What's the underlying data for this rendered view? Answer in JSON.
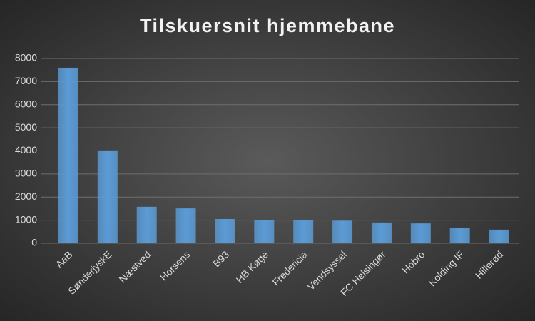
{
  "chart_data": {
    "type": "bar",
    "title": "Tilskuersnit hjemmebane",
    "categories": [
      "AaB",
      "SønderjyskE",
      "Næstved",
      "Horsens",
      "B93",
      "HB Køge",
      "Fredericia",
      "Vendsyssel",
      "FC Helsingør",
      "Hobro",
      "Kolding IF",
      "Hillerød"
    ],
    "values": [
      7600,
      4020,
      1580,
      1510,
      1050,
      1010,
      1010,
      980,
      900,
      860,
      680,
      590
    ],
    "color": "#5b9bd5",
    "ylim": [
      0,
      8000
    ],
    "yticks": [
      0,
      1000,
      2000,
      3000,
      4000,
      5000,
      6000,
      7000,
      8000
    ],
    "grid": true
  }
}
